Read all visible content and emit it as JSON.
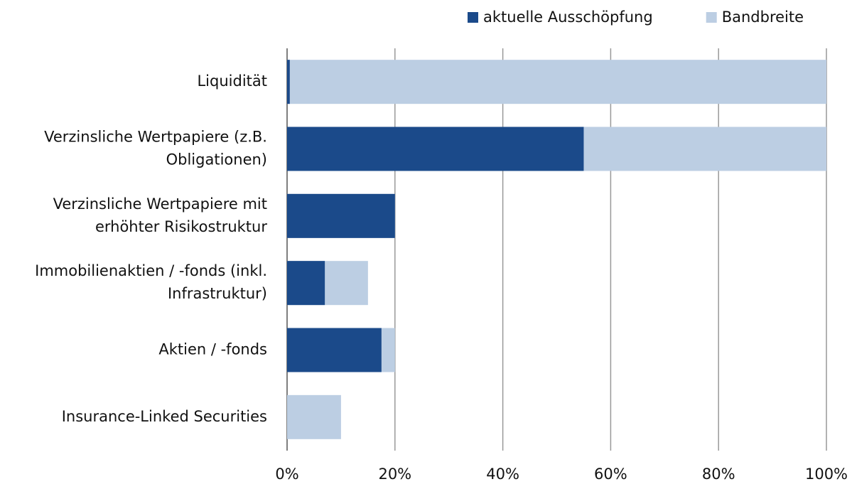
{
  "chart_data": {
    "type": "bar",
    "orientation": "horizontal",
    "barmode": "overlay",
    "categories": [
      [
        "Liquidität"
      ],
      [
        "Verzinsliche Wertpapiere (z.B.",
        "Obligationen)"
      ],
      [
        "Verzinsliche Wertpapiere mit",
        "erhöhter Risikostruktur"
      ],
      [
        "Immobilienaktien / -fonds (inkl.",
        "Infrastruktur)"
      ],
      [
        "Aktien / -fonds"
      ],
      [
        "Insurance-Linked Securities"
      ]
    ],
    "series": [
      {
        "name": "Bandbreite",
        "color": "#bccee3",
        "values": [
          100,
          100,
          20,
          15,
          20,
          10
        ]
      },
      {
        "name": "aktuelle Ausschöpfung",
        "color": "#1b4a8a",
        "values": [
          0.5,
          55,
          20,
          7,
          17.5,
          0
        ]
      }
    ],
    "legend_order": [
      1,
      0
    ],
    "xlim": [
      0,
      100
    ],
    "xticks": [
      {
        "value": 0,
        "label": "0%"
      },
      {
        "value": 20,
        "label": "20%"
      },
      {
        "value": 40,
        "label": "40%"
      },
      {
        "value": 60,
        "label": "60%"
      },
      {
        "value": 80,
        "label": "80%"
      },
      {
        "value": 100,
        "label": "100%"
      }
    ],
    "grid": true,
    "legend": "top-right"
  }
}
